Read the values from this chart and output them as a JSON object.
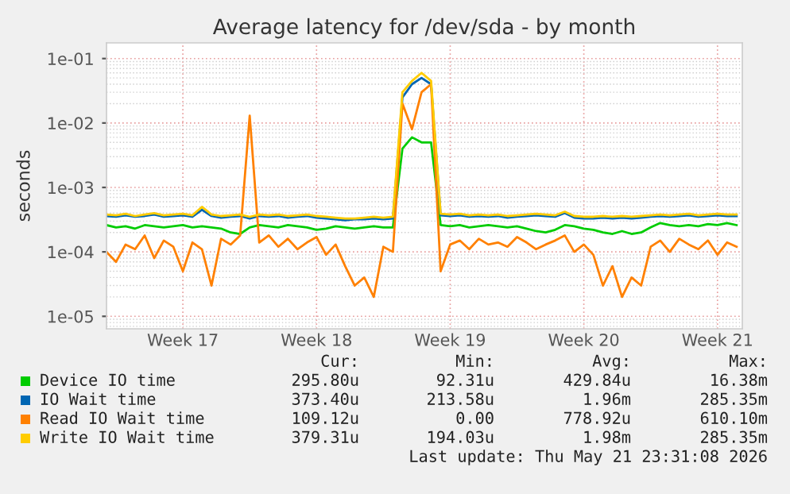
{
  "chart_data": {
    "type": "line",
    "title": "Average latency for /dev/sda - by month",
    "ylabel": "seconds",
    "categories": [
      null,
      null,
      null,
      null,
      null,
      null,
      null,
      null,
      "Week 17",
      null,
      null,
      null,
      null,
      null,
      null,
      null,
      null,
      null,
      null,
      null,
      null,
      null,
      "Week 18",
      null,
      null,
      null,
      null,
      null,
      null,
      null,
      null,
      null,
      null,
      null,
      null,
      null,
      "Week 19",
      null,
      null,
      null,
      null,
      null,
      null,
      null,
      null,
      null,
      null,
      null,
      null,
      null,
      "Week 20",
      null,
      null,
      null,
      null,
      null,
      null,
      null,
      null,
      null,
      null,
      null,
      null,
      null,
      "Week 21",
      null,
      null
    ],
    "log": "y",
    "ylim": [
      6.4e-06,
      0.175
    ],
    "yticks": [
      {
        "value": 1e-05,
        "label": "1e-05"
      },
      {
        "value": 0.0001,
        "label": "1e-04"
      },
      {
        "value": 0.001,
        "label": "1e-03"
      },
      {
        "value": 0.01,
        "label": "1e-02"
      },
      {
        "value": 0.1,
        "label": "1e-01"
      }
    ],
    "grid": true,
    "legend": "bottom",
    "series": [
      {
        "name": "Device IO time",
        "color": "#00cc00",
        "values": [
          0.00026,
          0.00024,
          0.00025,
          0.00023,
          0.00026,
          0.00025,
          0.00024,
          0.00025,
          0.00026,
          0.00024,
          0.00025,
          0.00024,
          0.00023,
          0.0002,
          0.00019,
          0.00024,
          0.00026,
          0.00025,
          0.00024,
          0.00026,
          0.00025,
          0.00024,
          0.00022,
          0.00023,
          0.00025,
          0.00024,
          0.00023,
          0.00024,
          0.00025,
          0.00024,
          0.00024,
          0.004,
          0.006,
          0.005,
          0.005,
          0.00026,
          0.00025,
          0.00026,
          0.00024,
          0.00025,
          0.00026,
          0.00025,
          0.00024,
          0.00025,
          0.00023,
          0.00021,
          0.0002,
          0.00022,
          0.00026,
          0.00025,
          0.00023,
          0.00022,
          0.0002,
          0.00019,
          0.00021,
          0.00019,
          0.0002,
          0.00024,
          0.00028,
          0.00026,
          0.00025,
          0.00026,
          0.00025,
          0.00027,
          0.00026,
          0.00028,
          0.00026
        ]
      },
      {
        "name": "IO Wait time",
        "color": "#0066b3",
        "values": [
          0.00036,
          0.00035,
          0.00037,
          0.00035,
          0.00036,
          0.00038,
          0.00035,
          0.00036,
          0.00037,
          0.00035,
          0.00045,
          0.00036,
          0.00034,
          0.00035,
          0.00036,
          0.00033,
          0.00036,
          0.00035,
          0.00036,
          0.00034,
          0.00035,
          0.00036,
          0.00034,
          0.00033,
          0.00032,
          0.00031,
          0.00032,
          0.00032,
          0.00033,
          0.00032,
          0.00033,
          0.025,
          0.04,
          0.05,
          0.04,
          0.00037,
          0.00036,
          0.00037,
          0.00035,
          0.00036,
          0.00035,
          0.00036,
          0.00034,
          0.00035,
          0.00036,
          0.00037,
          0.00036,
          0.00035,
          0.0004,
          0.00034,
          0.00033,
          0.00033,
          0.00034,
          0.00033,
          0.00034,
          0.00033,
          0.00034,
          0.00035,
          0.00036,
          0.00035,
          0.00036,
          0.00037,
          0.00035,
          0.00036,
          0.00037,
          0.00036,
          0.00036
        ]
      },
      {
        "name": "Read IO Wait time",
        "color": "#ff8000",
        "values": [
          0.0001,
          7e-05,
          0.00013,
          0.00011,
          0.00018,
          8e-05,
          0.00015,
          0.00012,
          5e-05,
          0.00014,
          0.00011,
          3e-05,
          0.00016,
          0.00013,
          0.00018,
          0.013,
          0.00014,
          0.00018,
          0.00012,
          0.00016,
          0.00011,
          0.00014,
          0.00017,
          9e-05,
          0.00013,
          6e-05,
          3e-05,
          4e-05,
          2e-05,
          0.00012,
          0.0001,
          0.02,
          0.008,
          0.03,
          0.04,
          5e-05,
          0.00013,
          0.00015,
          0.00011,
          0.00016,
          0.00013,
          0.00014,
          0.00012,
          0.00017,
          0.00014,
          0.00011,
          0.00013,
          0.00015,
          0.00018,
          0.0001,
          0.00013,
          9e-05,
          3e-05,
          6e-05,
          2e-05,
          4e-05,
          3e-05,
          0.00012,
          0.00015,
          0.0001,
          0.00016,
          0.00013,
          0.00011,
          0.00015,
          9e-05,
          0.00014,
          0.00012
        ]
      },
      {
        "name": "Write IO Wait time",
        "color": "#ffcc00",
        "values": [
          0.00038,
          0.00037,
          0.00039,
          0.00036,
          0.00038,
          0.0004,
          0.00037,
          0.00038,
          0.00039,
          0.00037,
          0.0005,
          0.00038,
          0.00036,
          0.00037,
          0.00038,
          0.00035,
          0.00038,
          0.00037,
          0.00038,
          0.00036,
          0.00037,
          0.00038,
          0.00036,
          0.00035,
          0.00034,
          0.00033,
          0.00033,
          0.00034,
          0.00035,
          0.00034,
          0.00035,
          0.03,
          0.045,
          0.06,
          0.045,
          0.00039,
          0.00038,
          0.00039,
          0.00037,
          0.00038,
          0.00037,
          0.00038,
          0.00036,
          0.00037,
          0.00038,
          0.00039,
          0.00038,
          0.00037,
          0.00042,
          0.00036,
          0.00035,
          0.00035,
          0.00036,
          0.00035,
          0.00036,
          0.00035,
          0.00036,
          0.00037,
          0.00038,
          0.00037,
          0.00038,
          0.00039,
          0.00037,
          0.00038,
          0.00039,
          0.00038,
          0.00038
        ]
      }
    ],
    "annotations": [
      "Cur:",
      "Min:",
      "Avg:",
      "Max:",
      "295.80u",
      "92.31u",
      "429.84u",
      "16.38m",
      "373.40u",
      "213.58u",
      "1.96m",
      "285.35m",
      "109.12u",
      "0.00",
      "778.92u",
      "610.10m",
      "379.31u",
      "194.03u",
      "1.98m",
      "285.35m",
      "Last update: Thu May 21 23:31:08 2026"
    ]
  }
}
